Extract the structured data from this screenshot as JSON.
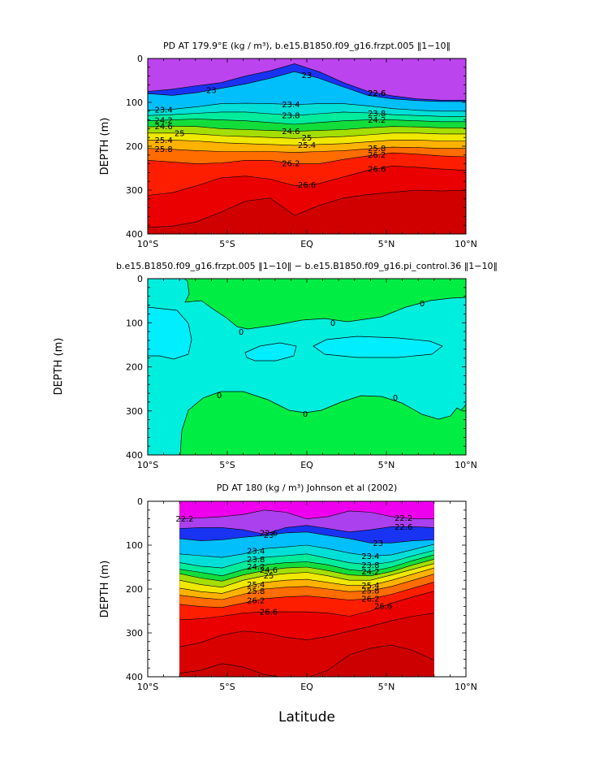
{
  "chart_data": [
    {
      "type": "heatmap",
      "title": "PD AT 179.9°E (kg / m³), b.e15.B1850.f09_g16.frzpt.005 ‖1−10‖",
      "ylabel": "DEPTH (m)",
      "xticks": [
        "10°S",
        "5°S",
        "EQ",
        "5°N",
        "10°N"
      ],
      "yticks": [
        "0",
        "100",
        "200",
        "300",
        "400"
      ],
      "xlim": [
        -10,
        10
      ],
      "ylim": [
        400,
        0
      ],
      "contour_labels": [
        "23",
        "22.6",
        "22.6",
        "23",
        "23.4",
        "23.4",
        "23.8",
        "23.8",
        "24.2",
        "24.2",
        "24.6",
        "24.6",
        "25",
        "25",
        "25.4",
        "25.4",
        "25.8",
        "25.8",
        "26.2",
        "26.2",
        "26.6",
        "26.6"
      ],
      "isopycnals": [
        {
          "level": 22.6,
          "depths": [
            75,
            70,
            62,
            55,
            40,
            28,
            12,
            30,
            55,
            75,
            85,
            92,
            95,
            95
          ]
        },
        {
          "level": 23.0,
          "depths": [
            80,
            84,
            78,
            68,
            58,
            45,
            30,
            45,
            65,
            84,
            92,
            96,
            98,
            98
          ]
        },
        {
          "level": 23.4,
          "depths": [
            118,
            116,
            110,
            103,
            102,
            103,
            105,
            103,
            103,
            108,
            114,
            118,
            120,
            120
          ]
        },
        {
          "level": 23.8,
          "depths": [
            130,
            128,
            125,
            122,
            122,
            126,
            130,
            126,
            122,
            124,
            128,
            130,
            132,
            132
          ]
        },
        {
          "level": 24.2,
          "depths": [
            142,
            140,
            138,
            140,
            142,
            146,
            150,
            146,
            142,
            140,
            140,
            142,
            144,
            144
          ]
        },
        {
          "level": 24.6,
          "depths": [
            156,
            154,
            155,
            160,
            162,
            164,
            166,
            164,
            162,
            158,
            155,
            156,
            158,
            158
          ]
        },
        {
          "level": 25.0,
          "depths": [
            170,
            170,
            172,
            176,
            178,
            180,
            182,
            180,
            178,
            174,
            170,
            170,
            172,
            172
          ]
        },
        {
          "level": 25.4,
          "depths": [
            186,
            186,
            188,
            192,
            194,
            196,
            198,
            196,
            194,
            190,
            186,
            186,
            188,
            188
          ]
        },
        {
          "level": 25.8,
          "depths": [
            205,
            207,
            210,
            212,
            212,
            212,
            214,
            212,
            210,
            206,
            202,
            203,
            205,
            205
          ]
        },
        {
          "level": 26.2,
          "depths": [
            232,
            236,
            240,
            238,
            232,
            232,
            240,
            240,
            230,
            222,
            215,
            218,
            222,
            224
          ]
        },
        {
          "level": 26.6,
          "depths": [
            312,
            306,
            290,
            272,
            268,
            275,
            290,
            285,
            270,
            255,
            245,
            248,
            252,
            255
          ]
        },
        {
          "level": 26.9,
          "depths": [
            385,
            382,
            372,
            350,
            325,
            318,
            358,
            335,
            318,
            310,
            305,
            300,
            302,
            300
          ]
        }
      ]
    },
    {
      "type": "heatmap",
      "title": "b.e15.B1850.f09_g16.frzpt.005 ‖1−10‖ − b.e15.B1850.f09_g16.pi_control.36 ‖1−10‖",
      "ylabel": "DEPTH (m)",
      "xticks": [
        "10°S",
        "5°S",
        "EQ",
        "5°N",
        "10°N"
      ],
      "yticks": [
        "0",
        "100",
        "200",
        "300",
        "400"
      ],
      "xlim": [
        -10,
        10
      ],
      "ylim": [
        400,
        0
      ],
      "contour_labels": [
        "0",
        "0",
        "0",
        "0",
        "0",
        "0"
      ],
      "colors": {
        "positive": "#00ee44",
        "negative": "#00eedd",
        "negative_strong": "#00eeff"
      }
    },
    {
      "type": "heatmap",
      "title": "PD AT 180 (kg / m³) Johnson et al (2002)",
      "ylabel": "DEPTH (m)",
      "xlabel": "Latitude",
      "xticks": [
        "10°S",
        "5°S",
        "EQ",
        "5°N",
        "10°N"
      ],
      "yticks": [
        "0",
        "100",
        "200",
        "300",
        "400"
      ],
      "xlim": [
        -10,
        10
      ],
      "ylim": [
        400,
        0
      ],
      "data_xlim": [
        -8,
        8
      ],
      "contour_labels": [
        "22.2",
        "22.2",
        "22.6",
        "22.6",
        "23",
        "23",
        "23.4",
        "23.4",
        "23.8",
        "23.8",
        "24.2",
        "24.2",
        "24.6",
        "25",
        "25.4",
        "25.4",
        "25.8",
        "25.8",
        "26.2",
        "26.2",
        "26.6",
        "26.6"
      ],
      "isopycnals": [
        {
          "level": 22.2,
          "depths": [
            40,
            38,
            35,
            30,
            20,
            25,
            40,
            35,
            22,
            25,
            35,
            40,
            40
          ]
        },
        {
          "level": 22.6,
          "depths": [
            62,
            60,
            60,
            65,
            75,
            60,
            55,
            62,
            70,
            65,
            58,
            58,
            60
          ]
        },
        {
          "level": 23.0,
          "depths": [
            85,
            90,
            88,
            82,
            78,
            72,
            70,
            78,
            85,
            95,
            95,
            90,
            88
          ]
        },
        {
          "level": 23.4,
          "depths": [
            120,
            124,
            128,
            120,
            108,
            104,
            100,
            108,
            118,
            125,
            122,
            110,
            98
          ]
        },
        {
          "level": 23.8,
          "depths": [
            140,
            148,
            152,
            138,
            128,
            124,
            120,
            130,
            140,
            145,
            138,
            124,
            112
          ]
        },
        {
          "level": 24.2,
          "depths": [
            155,
            162,
            170,
            156,
            145,
            140,
            138,
            145,
            156,
            160,
            150,
            135,
            122
          ]
        },
        {
          "level": 24.6,
          "depths": [
            165,
            175,
            182,
            168,
            158,
            152,
            150,
            158,
            168,
            170,
            160,
            145,
            132
          ]
        },
        {
          "level": 25.0,
          "depths": [
            180,
            190,
            196,
            180,
            170,
            165,
            162,
            170,
            180,
            180,
            168,
            155,
            142
          ]
        },
        {
          "level": 25.4,
          "depths": [
            198,
            206,
            210,
            196,
            185,
            180,
            178,
            185,
            192,
            192,
            180,
            166,
            152
          ]
        },
        {
          "level": 25.8,
          "depths": [
            214,
            220,
            224,
            212,
            200,
            196,
            194,
            200,
            206,
            204,
            194,
            180,
            166
          ]
        },
        {
          "level": 26.2,
          "depths": [
            235,
            240,
            242,
            232,
            222,
            218,
            216,
            220,
            225,
            222,
            212,
            198,
            184
          ]
        },
        {
          "level": 26.6,
          "depths": [
            270,
            268,
            262,
            255,
            252,
            252,
            252,
            255,
            262,
            250,
            232,
            218,
            205
          ]
        },
        {
          "level": 26.8,
          "depths": [
            332,
            322,
            305,
            296,
            300,
            310,
            316,
            308,
            296,
            285,
            272,
            262,
            255
          ]
        },
        {
          "level": 27.0,
          "depths": [
            392,
            385,
            370,
            378,
            395,
            402,
            402,
            385,
            350,
            335,
            328,
            340,
            362
          ]
        }
      ]
    }
  ]
}
